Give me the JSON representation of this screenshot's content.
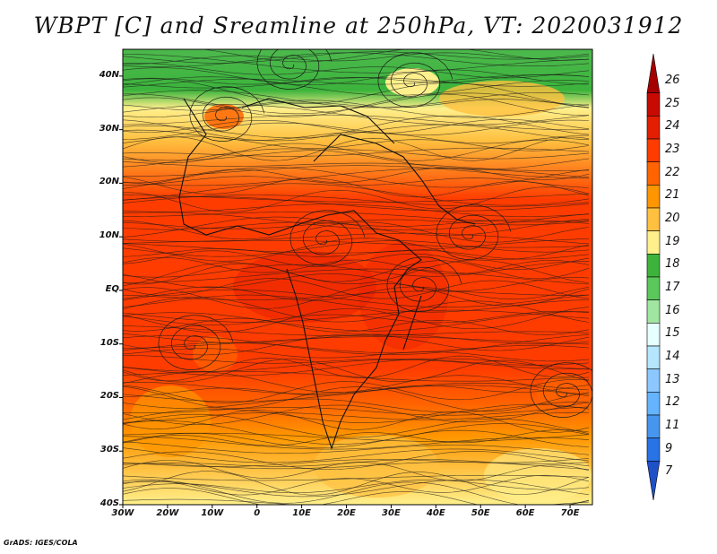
{
  "title": "WBPT [C] and Sreamline at 250hPa, VT: 2020031912",
  "credit": "GrADS: IGES/COLA",
  "map": {
    "lat_labels": [
      "40N",
      "30N",
      "20N",
      "10N",
      "EQ",
      "10S",
      "20S",
      "30S",
      "40S"
    ],
    "lat_values": [
      40,
      30,
      20,
      10,
      0,
      -10,
      -20,
      -30,
      -40
    ],
    "lon_labels": [
      "30W",
      "20W",
      "10W",
      "0",
      "10E",
      "20E",
      "30E",
      "40E",
      "50E",
      "60E",
      "70E"
    ],
    "lon_values": [
      -30,
      -20,
      -10,
      0,
      10,
      20,
      30,
      40,
      50,
      60,
      70
    ],
    "lon_range": [
      -30,
      75
    ],
    "lat_range": [
      -40,
      45
    ]
  },
  "colorbar": {
    "levels": [
      "26",
      "25",
      "24",
      "23",
      "22",
      "21",
      "20",
      "19",
      "18",
      "17",
      "16",
      "15",
      "14",
      "13",
      "12",
      "11",
      "9",
      "7"
    ],
    "colors": [
      "#a50000",
      "#c80a00",
      "#e41e00",
      "#ff3c00",
      "#ff6400",
      "#ff9600",
      "#ffc040",
      "#fff08c",
      "#3cb43c",
      "#5ac85a",
      "#a0e6a0",
      "#e6ffff",
      "#b4e6ff",
      "#8cc8ff",
      "#64b4ff",
      "#4696f0",
      "#2873e6",
      "#1e50c8"
    ]
  },
  "colors": {
    "hot": "#ff3c00",
    "warm": "#ff7a1a",
    "mild": "#ffc040",
    "cool": "#fff08c",
    "green": "#3cb43c"
  }
}
